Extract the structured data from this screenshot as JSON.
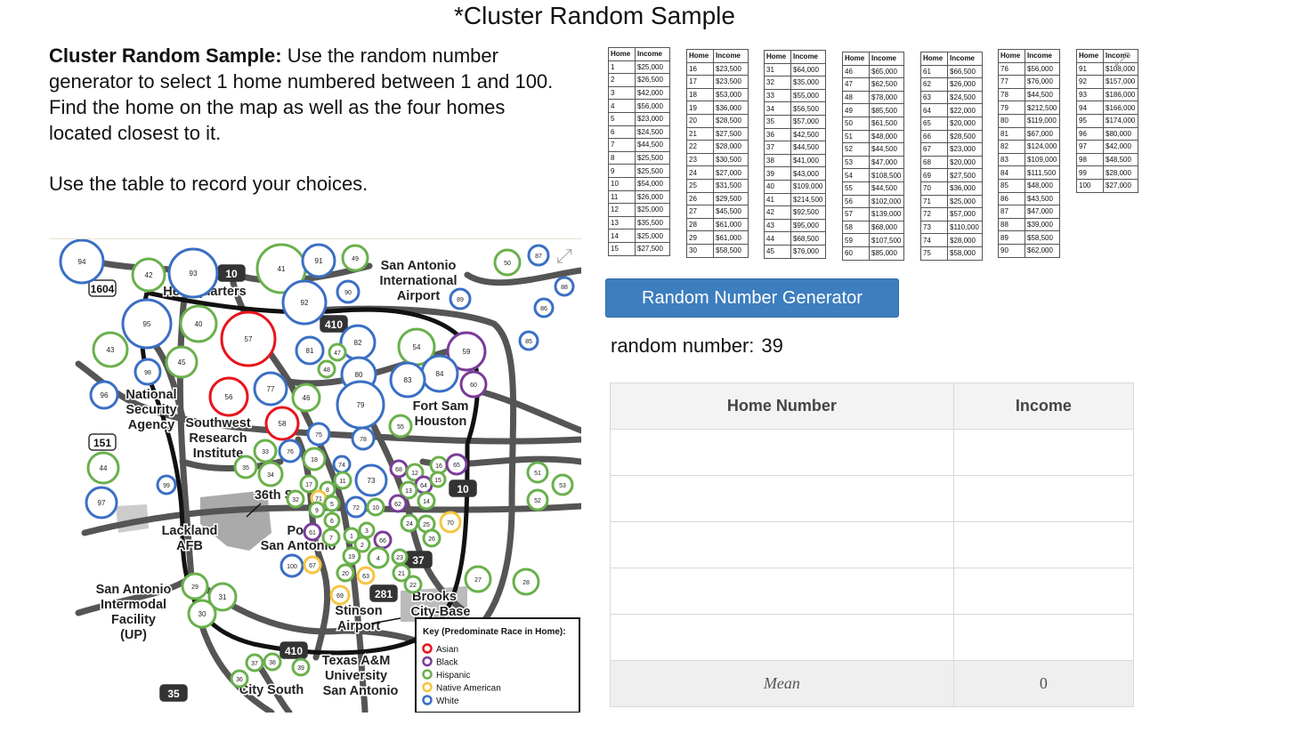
{
  "page": {
    "title": "*Cluster Random Sample"
  },
  "instructions": {
    "bold_lead": "Cluster Random Sample:",
    "paragraph1": " Use the random number generator to select 1 home numbered between 1 and 100. Find the home on the map as well as the four homes located closest to it.",
    "paragraph2": "Use the table to record your choices."
  },
  "map": {
    "labels": {
      "sa_airport_1": "San Antonio",
      "sa_airport_2": "International",
      "sa_airport_3": "Airport",
      "headquarters": "Headquarters",
      "nsa_1": "National",
      "nsa_2": "Security",
      "nsa_3": "Agency",
      "swri_1": "Southwest",
      "swri_2": "Research",
      "swri_3": "Institute",
      "fort_1": "Fort Sam",
      "fort_2": "Houston",
      "street_36": "36th St",
      "lackland_1": "Lackland",
      "lackland_2": "AFB",
      "port_1": "Port",
      "port_2": "San Antonio",
      "intermodal_1": "San Antonio",
      "intermodal_2": "Intermodal",
      "intermodal_3": "Facility",
      "intermodal_4": "(UP)",
      "stinson_1": "Stinson",
      "stinson_2": "Airport",
      "brooks_1": "Brooks",
      "brooks_2": "City-Base",
      "tamu_1": "Texas A&M",
      "tamu_2": "University",
      "tamu_3": "San Antonio",
      "city_south": "City South"
    },
    "highways": [
      "1604",
      "10",
      "410",
      "151",
      "10",
      "37",
      "281",
      "410",
      "35"
    ],
    "key": {
      "title": "Key (Predominate Race in Home):",
      "items": [
        {
          "label": "Asian",
          "color": "#e8141b"
        },
        {
          "label": "Black",
          "color": "#7a3c98"
        },
        {
          "label": "Hispanic",
          "color": "#6ab04c"
        },
        {
          "label": "Native American",
          "color": "#f5c542"
        },
        {
          "label": "White",
          "color": "#3a6fc4"
        }
      ]
    },
    "homes": [
      {
        "n": "94",
        "race": "white"
      },
      {
        "n": "42",
        "race": "hispanic"
      },
      {
        "n": "93",
        "race": "white"
      },
      {
        "n": "41",
        "race": "hispanic"
      },
      {
        "n": "91",
        "race": "white"
      },
      {
        "n": "49",
        "race": "hispanic"
      },
      {
        "n": "50",
        "race": "hispanic"
      },
      {
        "n": "87",
        "race": "white"
      },
      {
        "n": "88",
        "race": "white"
      },
      {
        "n": "90",
        "race": "white"
      },
      {
        "n": "92",
        "race": "white"
      },
      {
        "n": "89",
        "race": "white"
      },
      {
        "n": "86",
        "race": "white"
      },
      {
        "n": "95",
        "race": "white"
      },
      {
        "n": "40",
        "race": "hispanic"
      },
      {
        "n": "57",
        "race": "asian"
      },
      {
        "n": "82",
        "race": "white"
      },
      {
        "n": "54",
        "race": "hispanic"
      },
      {
        "n": "59",
        "race": "black"
      },
      {
        "n": "85",
        "race": "white"
      },
      {
        "n": "43",
        "race": "hispanic"
      },
      {
        "n": "45",
        "race": "hispanic"
      },
      {
        "n": "81",
        "race": "white"
      },
      {
        "n": "47",
        "race": "hispanic"
      },
      {
        "n": "48",
        "race": "hispanic"
      },
      {
        "n": "80",
        "race": "white"
      },
      {
        "n": "84",
        "race": "white"
      },
      {
        "n": "83",
        "race": "white"
      },
      {
        "n": "60",
        "race": "black"
      },
      {
        "n": "98",
        "race": "white"
      },
      {
        "n": "77",
        "race": "white"
      },
      {
        "n": "46",
        "race": "hispanic"
      },
      {
        "n": "96",
        "race": "white"
      },
      {
        "n": "56",
        "race": "asian"
      },
      {
        "n": "79",
        "race": "white"
      },
      {
        "n": "58",
        "race": "asian"
      },
      {
        "n": "55",
        "race": "hispanic"
      },
      {
        "n": "75",
        "race": "white"
      },
      {
        "n": "78",
        "race": "white"
      },
      {
        "n": "33",
        "race": "hispanic"
      },
      {
        "n": "76",
        "race": "white"
      },
      {
        "n": "18",
        "race": "hispanic"
      },
      {
        "n": "44",
        "race": "hispanic"
      },
      {
        "n": "35",
        "race": "hispanic"
      },
      {
        "n": "34",
        "race": "hispanic"
      },
      {
        "n": "74",
        "race": "white"
      },
      {
        "n": "68",
        "race": "black"
      },
      {
        "n": "12",
        "race": "hispanic"
      },
      {
        "n": "16",
        "race": "hispanic"
      },
      {
        "n": "65",
        "race": "black"
      },
      {
        "n": "51",
        "race": "hispanic"
      },
      {
        "n": "53",
        "race": "hispanic"
      },
      {
        "n": "99",
        "race": "white"
      },
      {
        "n": "17",
        "race": "hispanic"
      },
      {
        "n": "11",
        "race": "hispanic"
      },
      {
        "n": "73",
        "race": "white"
      },
      {
        "n": "64",
        "race": "black"
      },
      {
        "n": "15",
        "race": "hispanic"
      },
      {
        "n": "8",
        "race": "hispanic"
      },
      {
        "n": "71",
        "race": "native"
      },
      {
        "n": "13",
        "race": "hispanic"
      },
      {
        "n": "32",
        "race": "hispanic"
      },
      {
        "n": "5",
        "race": "hispanic"
      },
      {
        "n": "72",
        "race": "white"
      },
      {
        "n": "10",
        "race": "hispanic"
      },
      {
        "n": "62",
        "race": "black"
      },
      {
        "n": "14",
        "race": "hispanic"
      },
      {
        "n": "52",
        "race": "hispanic"
      },
      {
        "n": "97",
        "race": "white"
      },
      {
        "n": "9",
        "race": "hispanic"
      },
      {
        "n": "6",
        "race": "hispanic"
      },
      {
        "n": "24",
        "race": "hispanic"
      },
      {
        "n": "25",
        "race": "hispanic"
      },
      {
        "n": "70",
        "race": "native"
      },
      {
        "n": "61",
        "race": "black"
      },
      {
        "n": "1",
        "race": "hispanic"
      },
      {
        "n": "3",
        "race": "hispanic"
      },
      {
        "n": "7",
        "race": "hispanic"
      },
      {
        "n": "2",
        "race": "hispanic"
      },
      {
        "n": "66",
        "race": "black"
      },
      {
        "n": "26",
        "race": "hispanic"
      },
      {
        "n": "19",
        "race": "hispanic"
      },
      {
        "n": "4",
        "race": "hispanic"
      },
      {
        "n": "23",
        "race": "hispanic"
      },
      {
        "n": "100",
        "race": "white"
      },
      {
        "n": "67",
        "race": "native"
      },
      {
        "n": "20",
        "race": "hispanic"
      },
      {
        "n": "63",
        "race": "native"
      },
      {
        "n": "21",
        "race": "hispanic"
      },
      {
        "n": "27",
        "race": "hispanic"
      },
      {
        "n": "28",
        "race": "hispanic"
      },
      {
        "n": "22",
        "race": "hispanic"
      },
      {
        "n": "29",
        "race": "hispanic"
      },
      {
        "n": "31",
        "race": "hispanic"
      },
      {
        "n": "69",
        "race": "native"
      },
      {
        "n": "30",
        "race": "hispanic"
      },
      {
        "n": "37",
        "race": "hispanic"
      },
      {
        "n": "38",
        "race": "hispanic"
      },
      {
        "n": "39",
        "race": "hispanic"
      },
      {
        "n": "36",
        "race": "hispanic"
      }
    ]
  },
  "income_tables": {
    "headers": [
      "Home",
      "Income"
    ],
    "groups": [
      [
        [
          "1",
          "$25,000"
        ],
        [
          "2",
          "$26,500"
        ],
        [
          "3",
          "$42,000"
        ],
        [
          "4",
          "$56,000"
        ],
        [
          "5",
          "$23,000"
        ],
        [
          "6",
          "$24,500"
        ],
        [
          "7",
          "$44,500"
        ],
        [
          "8",
          "$25,500"
        ],
        [
          "9",
          "$25,500"
        ],
        [
          "10",
          "$54,000"
        ],
        [
          "11",
          "$26,000"
        ],
        [
          "12",
          "$25,000"
        ],
        [
          "13",
          "$35,500"
        ],
        [
          "14",
          "$25,000"
        ],
        [
          "15",
          "$27,500"
        ]
      ],
      [
        [
          "16",
          "$23,500"
        ],
        [
          "17",
          "$23,500"
        ],
        [
          "18",
          "$53,000"
        ],
        [
          "19",
          "$36,000"
        ],
        [
          "20",
          "$28,500"
        ],
        [
          "21",
          "$27,500"
        ],
        [
          "22",
          "$28,000"
        ],
        [
          "23",
          "$30,500"
        ],
        [
          "24",
          "$27,000"
        ],
        [
          "25",
          "$31,500"
        ],
        [
          "26",
          "$29,500"
        ],
        [
          "27",
          "$45,500"
        ],
        [
          "28",
          "$61,000"
        ],
        [
          "29",
          "$61,000"
        ],
        [
          "30",
          "$58,500"
        ]
      ],
      [
        [
          "31",
          "$64,000"
        ],
        [
          "32",
          "$35,000"
        ],
        [
          "33",
          "$55,000"
        ],
        [
          "34",
          "$56,500"
        ],
        [
          "35",
          "$57,000"
        ],
        [
          "36",
          "$42,500"
        ],
        [
          "37",
          "$44,500"
        ],
        [
          "38",
          "$41,000"
        ],
        [
          "39",
          "$43,000"
        ],
        [
          "40",
          "$109,000"
        ],
        [
          "41",
          "$214,500"
        ],
        [
          "42",
          "$92,500"
        ],
        [
          "43",
          "$95,000"
        ],
        [
          "44",
          "$68,500"
        ],
        [
          "45",
          "$76,000"
        ]
      ],
      [
        [
          "46",
          "$65,000"
        ],
        [
          "47",
          "$62,500"
        ],
        [
          "48",
          "$78,000"
        ],
        [
          "49",
          "$85,500"
        ],
        [
          "50",
          "$61,500"
        ],
        [
          "51",
          "$48,000"
        ],
        [
          "52",
          "$44,500"
        ],
        [
          "53",
          "$47,000"
        ],
        [
          "54",
          "$108,500"
        ],
        [
          "55",
          "$44,500"
        ],
        [
          "56",
          "$102,000"
        ],
        [
          "57",
          "$139,000"
        ],
        [
          "58",
          "$68,000"
        ],
        [
          "59",
          "$107,500"
        ],
        [
          "60",
          "$85,000"
        ]
      ],
      [
        [
          "61",
          "$66,500"
        ],
        [
          "62",
          "$26,000"
        ],
        [
          "63",
          "$24,500"
        ],
        [
          "64",
          "$22,000"
        ],
        [
          "65",
          "$20,000"
        ],
        [
          "66",
          "$28,500"
        ],
        [
          "67",
          "$23,000"
        ],
        [
          "68",
          "$20,000"
        ],
        [
          "69",
          "$27,500"
        ],
        [
          "70",
          "$36,000"
        ],
        [
          "71",
          "$25,000"
        ],
        [
          "72",
          "$57,000"
        ],
        [
          "73",
          "$110,000"
        ],
        [
          "74",
          "$28,000"
        ],
        [
          "75",
          "$58,000"
        ]
      ],
      [
        [
          "76",
          "$56,000"
        ],
        [
          "77",
          "$76,000"
        ],
        [
          "78",
          "$44,500"
        ],
        [
          "79",
          "$212,500"
        ],
        [
          "80",
          "$119,000"
        ],
        [
          "81",
          "$67,000"
        ],
        [
          "82",
          "$124,000"
        ],
        [
          "83",
          "$109,000"
        ],
        [
          "84",
          "$111,500"
        ],
        [
          "85",
          "$48,000"
        ],
        [
          "86",
          "$43,500"
        ],
        [
          "87",
          "$47,000"
        ],
        [
          "88",
          "$39,000"
        ],
        [
          "89",
          "$58,500"
        ],
        [
          "90",
          "$62,000"
        ]
      ],
      [
        [
          "91",
          "$108,000"
        ],
        [
          "92",
          "$157,000"
        ],
        [
          "93",
          "$186,000"
        ],
        [
          "94",
          "$166,000"
        ],
        [
          "95",
          "$174,000"
        ],
        [
          "96",
          "$80,000"
        ],
        [
          "97",
          "$42,000"
        ],
        [
          "98",
          "$48,500"
        ],
        [
          "99",
          "$28,000"
        ],
        [
          "100",
          "$27,000"
        ]
      ]
    ]
  },
  "generator": {
    "button_label": "Random Number Generator",
    "result_label": "random number:",
    "result_value": "39"
  },
  "record_table": {
    "col_home": "Home Number",
    "col_income": "Income",
    "rows": [
      [
        "",
        ""
      ],
      [
        "",
        ""
      ],
      [
        "",
        ""
      ],
      [
        "",
        ""
      ],
      [
        "",
        ""
      ]
    ],
    "mean_label": "Mean",
    "mean_value": "0"
  }
}
